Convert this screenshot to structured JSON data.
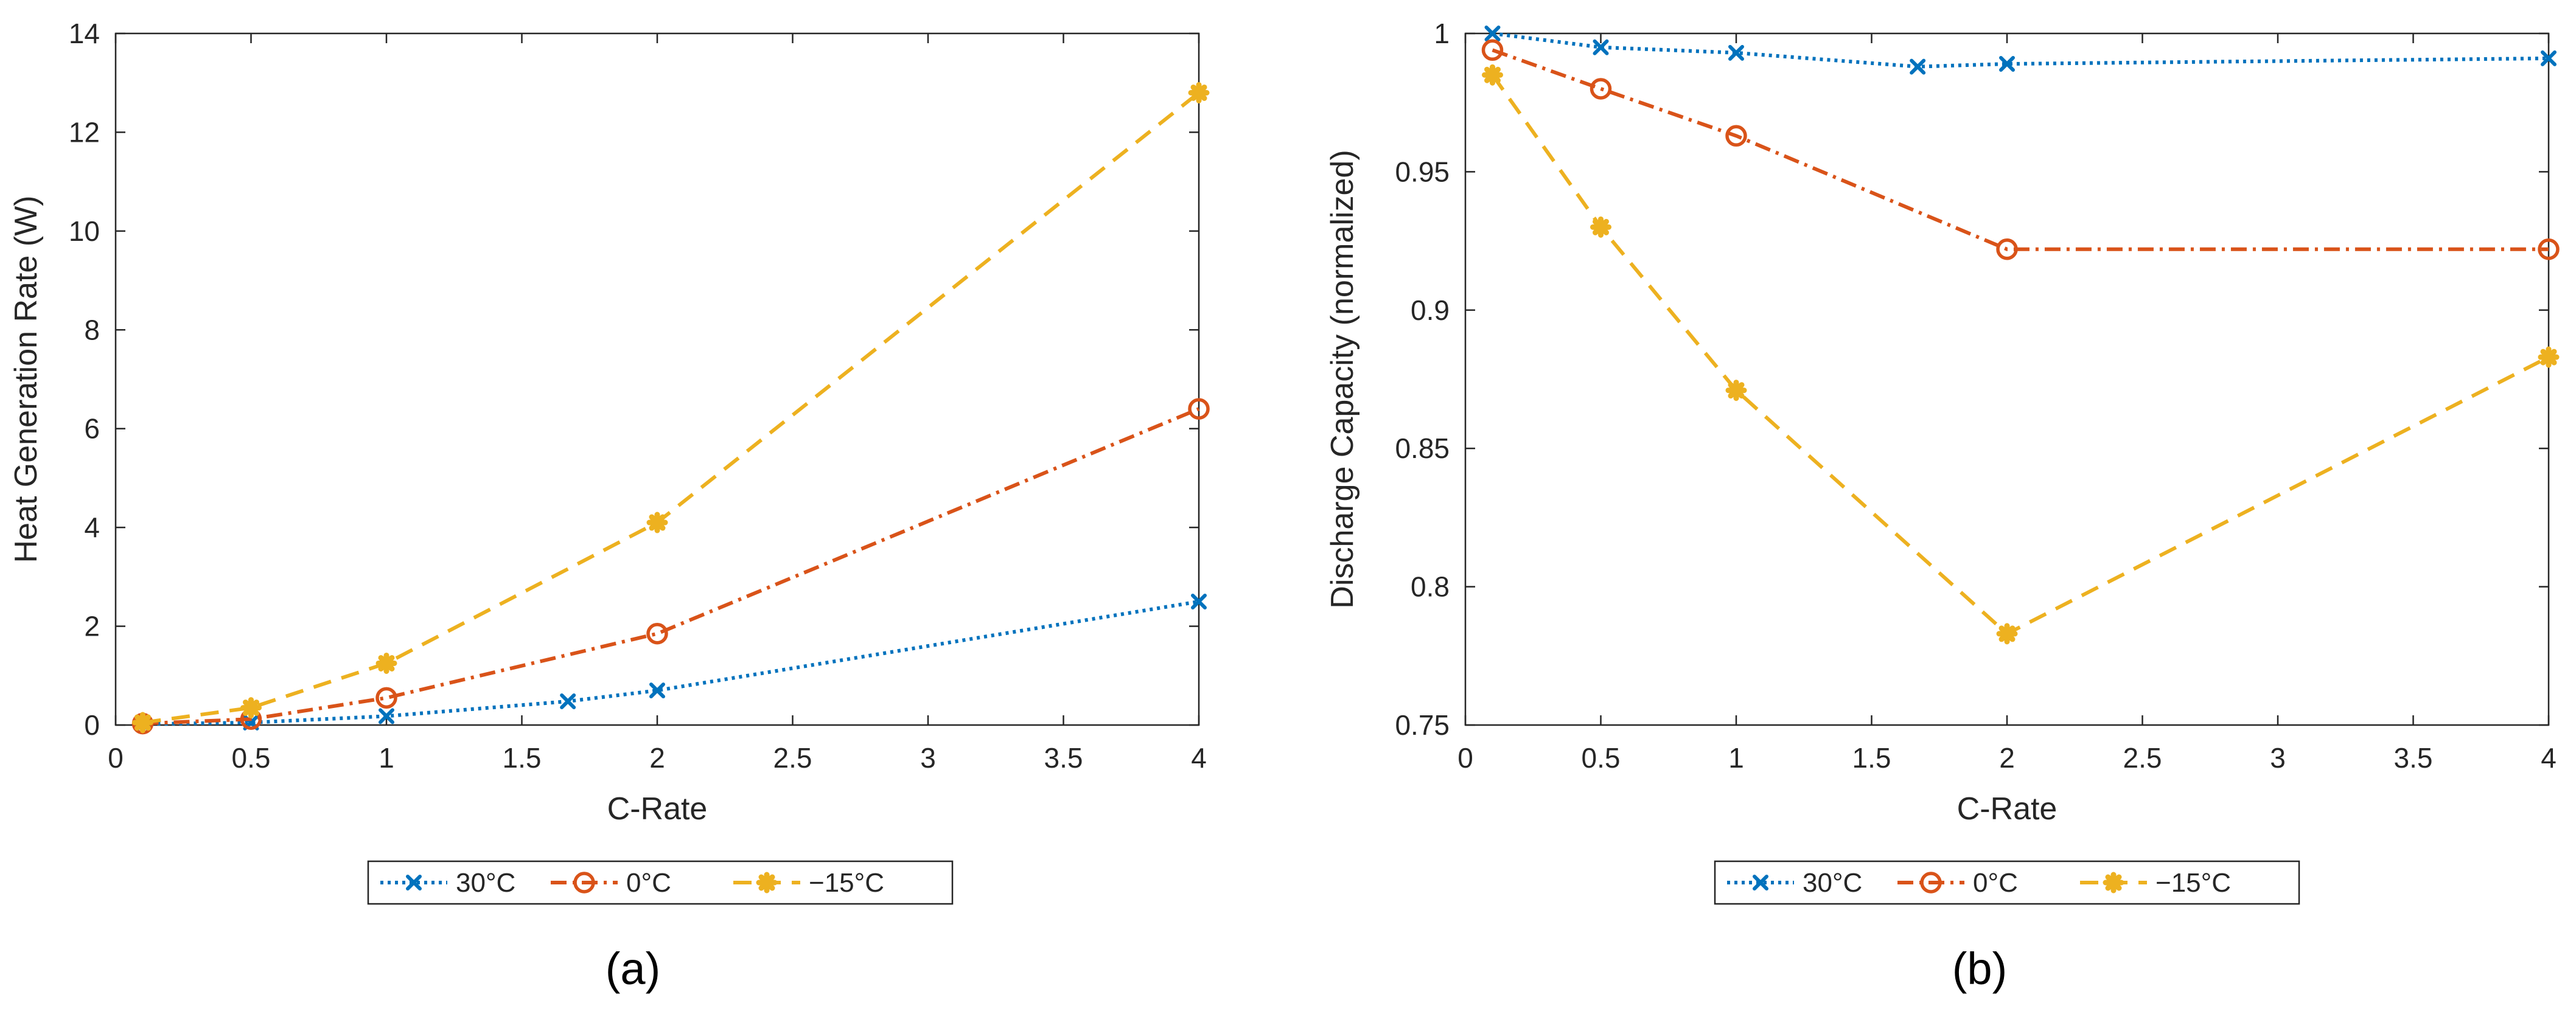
{
  "chart_data": [
    {
      "type": "line",
      "caption": "(a)",
      "xlabel": "C-Rate",
      "ylabel": "Heat Generation Rate (W)",
      "xlim": [
        0,
        4
      ],
      "ylim": [
        0,
        14
      ],
      "xticks": [
        "0",
        "0.5",
        "1",
        "1.5",
        "2",
        "2.5",
        "3",
        "3.5",
        "4"
      ],
      "yticks": [
        "0",
        "2",
        "4",
        "6",
        "8",
        "10",
        "12",
        "14"
      ],
      "legend_position": "bottom-center",
      "series": [
        {
          "name": "30°C",
          "color": "#0072BD",
          "line": "dotted",
          "marker": "x",
          "x": [
            0.1,
            0.5,
            1,
            1.67,
            2,
            4
          ],
          "y": [
            0.02,
            0.05,
            0.18,
            0.48,
            0.7,
            2.5
          ]
        },
        {
          "name": "0°C",
          "color": "#D95319",
          "line": "dash-dot",
          "marker": "circle",
          "x": [
            0.1,
            0.5,
            1,
            2,
            4
          ],
          "y": [
            0.03,
            0.12,
            0.55,
            1.85,
            6.4
          ]
        },
        {
          "name": "−15°C",
          "color": "#EDB120",
          "line": "dashed",
          "marker": "asterisk",
          "x": [
            0.1,
            0.5,
            1,
            2,
            4
          ],
          "y": [
            0.05,
            0.35,
            1.25,
            4.1,
            12.8
          ]
        }
      ]
    },
    {
      "type": "line",
      "caption": "(b)",
      "xlabel": "C-Rate",
      "ylabel": "Discharge Capacity (normalized)",
      "xlim": [
        0,
        4
      ],
      "ylim": [
        0.75,
        1
      ],
      "xticks": [
        "0",
        "0.5",
        "1",
        "1.5",
        "2",
        "2.5",
        "3",
        "3.5",
        "4"
      ],
      "yticks": [
        "0.75",
        "0.8",
        "0.85",
        "0.9",
        "0.95",
        "1"
      ],
      "legend_position": "bottom-center",
      "series": [
        {
          "name": "30°C",
          "color": "#0072BD",
          "line": "dotted",
          "marker": "x",
          "x": [
            0.1,
            0.5,
            1,
            1.67,
            2,
            4
          ],
          "y": [
            1.0,
            0.995,
            0.993,
            0.988,
            0.989,
            0.991
          ]
        },
        {
          "name": "0°C",
          "color": "#D95319",
          "line": "dash-dot",
          "marker": "circle",
          "x": [
            0.1,
            0.5,
            1,
            2,
            4
          ],
          "y": [
            0.994,
            0.98,
            0.963,
            0.922,
            0.922
          ]
        },
        {
          "name": "−15°C",
          "color": "#EDB120",
          "line": "dashed",
          "marker": "asterisk",
          "x": [
            0.1,
            0.5,
            1,
            2,
            4
          ],
          "y": [
            0.985,
            0.93,
            0.871,
            0.783,
            0.883
          ]
        }
      ]
    }
  ]
}
